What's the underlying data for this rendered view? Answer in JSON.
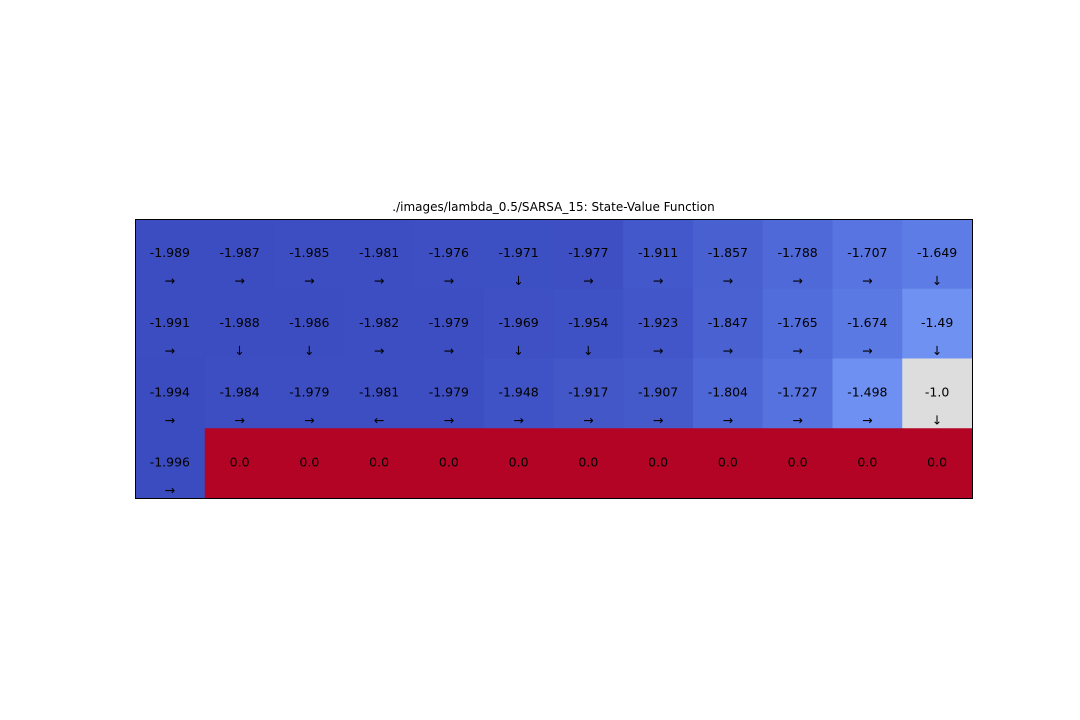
{
  "chart_data": {
    "type": "heatmap",
    "title": "./images/lambda_0.5/SARSA_15: State-Value Function",
    "rows": 4,
    "cols": 12,
    "colormap": "coolwarm",
    "value_range": [
      -2.0,
      0.0
    ],
    "values": [
      [
        -1.989,
        -1.987,
        -1.985,
        -1.981,
        -1.976,
        -1.971,
        -1.977,
        -1.911,
        -1.857,
        -1.788,
        -1.707,
        -1.649
      ],
      [
        -1.991,
        -1.988,
        -1.986,
        -1.982,
        -1.979,
        -1.969,
        -1.954,
        -1.923,
        -1.847,
        -1.765,
        -1.674,
        -1.49
      ],
      [
        -1.994,
        -1.984,
        -1.979,
        -1.981,
        -1.979,
        -1.948,
        -1.917,
        -1.907,
        -1.804,
        -1.727,
        -1.498,
        -1.0
      ],
      [
        -1.996,
        0.0,
        0.0,
        0.0,
        0.0,
        0.0,
        0.0,
        0.0,
        0.0,
        0.0,
        0.0,
        0.0
      ]
    ],
    "labels": [
      [
        "-1.989",
        "-1.987",
        "-1.985",
        "-1.981",
        "-1.976",
        "-1.971",
        "-1.977",
        "-1.911",
        "-1.857",
        "-1.788",
        "-1.707",
        "-1.649"
      ],
      [
        "-1.991",
        "-1.988",
        "-1.986",
        "-1.982",
        "-1.979",
        "-1.969",
        "-1.954",
        "-1.923",
        "-1.847",
        "-1.765",
        "-1.674",
        "-1.49"
      ],
      [
        "-1.994",
        "-1.984",
        "-1.979",
        "-1.981",
        "-1.979",
        "-1.948",
        "-1.917",
        "-1.907",
        "-1.804",
        "-1.727",
        "-1.498",
        "-1.0"
      ],
      [
        "-1.996",
        "0.0",
        "0.0",
        "0.0",
        "0.0",
        "0.0",
        "0.0",
        "0.0",
        "0.0",
        "0.0",
        "0.0",
        "0.0"
      ]
    ],
    "policy_arrows": [
      [
        "→",
        "→",
        "→",
        "→",
        "→",
        "↓",
        "→",
        "→",
        "→",
        "→",
        "→",
        "↓"
      ],
      [
        "→",
        "↓",
        "↓",
        "→",
        "→",
        "↓",
        "↓",
        "→",
        "→",
        "→",
        "→",
        "↓"
      ],
      [
        "→",
        "→",
        "→",
        "←",
        "→",
        "→",
        "→",
        "→",
        "→",
        "→",
        "→",
        "↓"
      ],
      [
        "→",
        "",
        "",
        "",
        "",
        "",
        "",
        "",
        "",
        "",
        "",
        ""
      ]
    ],
    "colors": {
      "cliff": "#b40426",
      "border": "#000000",
      "text": "#000000"
    }
  }
}
